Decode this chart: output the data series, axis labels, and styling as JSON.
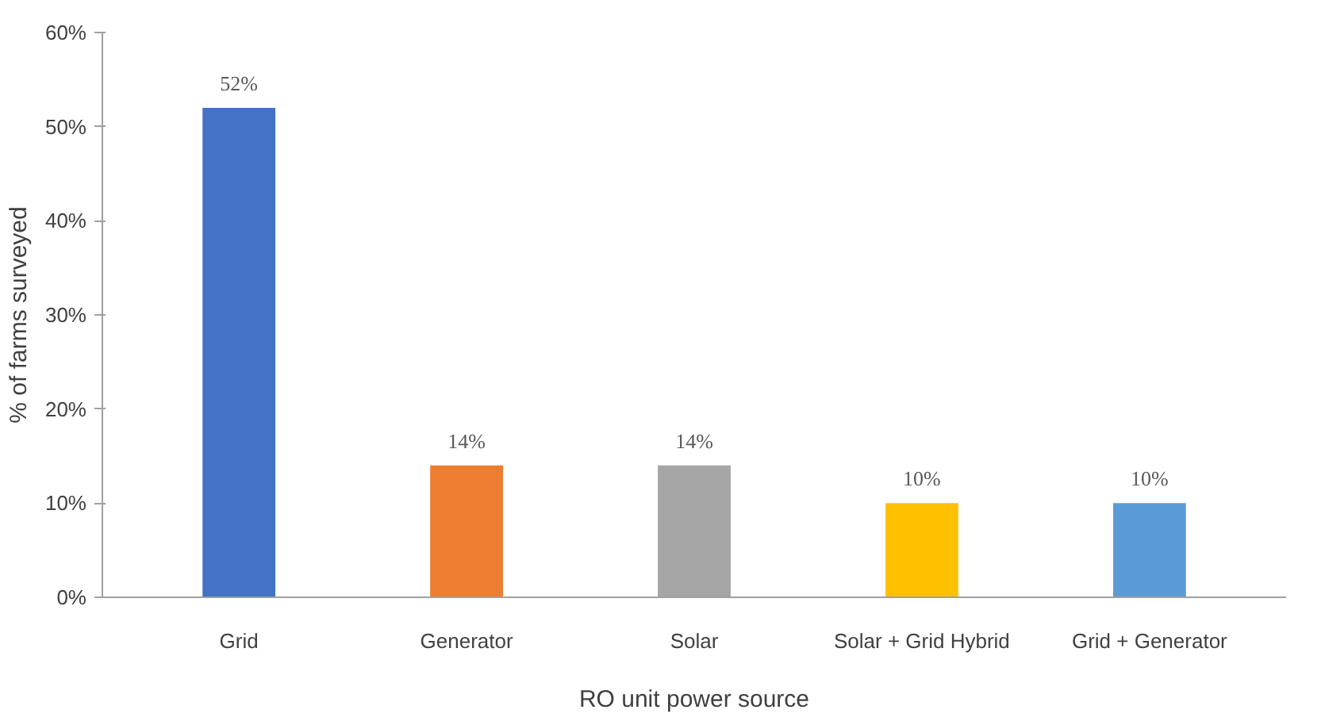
{
  "chart_data": {
    "type": "bar",
    "xlabel": "RO unit power source",
    "ylabel": "% of farms surveyed",
    "categories": [
      "Grid",
      "Generator",
      "Solar",
      "Solar + Grid Hybrid",
      "Grid + Generator"
    ],
    "values": [
      52,
      14,
      14,
      10,
      10
    ],
    "colors": [
      "#4472c4",
      "#ed7d31",
      "#a5a5a5",
      "#ffc000",
      "#5b9bd5"
    ],
    "value_labels": [
      "52%",
      "14%",
      "14%",
      "10%",
      "10%"
    ],
    "ylim": [
      0,
      60
    ],
    "yticks": [
      {
        "value": 0,
        "label": "0%"
      },
      {
        "value": 10,
        "label": "10%"
      },
      {
        "value": 20,
        "label": "20%"
      },
      {
        "value": 30,
        "label": "30%"
      },
      {
        "value": 40,
        "label": "40%"
      },
      {
        "value": 50,
        "label": "50%"
      },
      {
        "value": 60,
        "label": "60%"
      }
    ]
  }
}
